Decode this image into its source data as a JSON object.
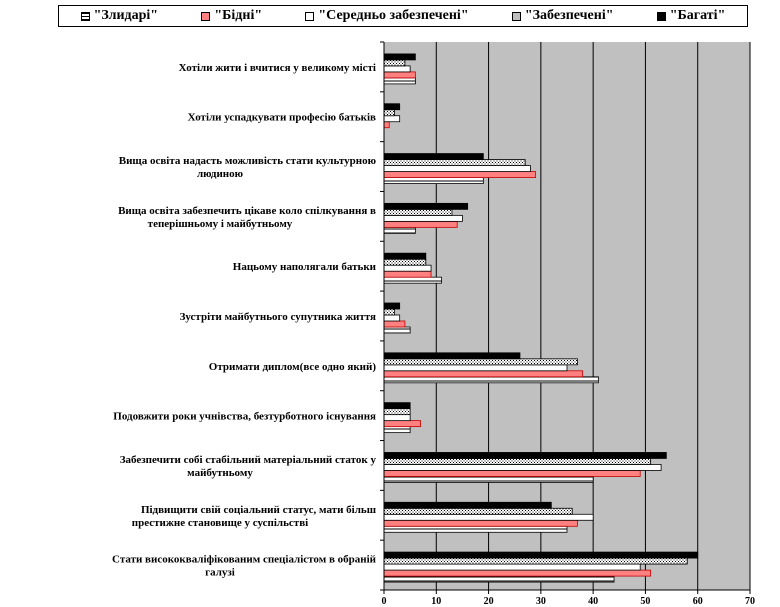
{
  "chart_data": {
    "type": "bar",
    "orientation": "horizontal",
    "xlim": [
      0,
      70
    ],
    "x_ticks": [
      "0",
      "10",
      "20",
      "30",
      "40",
      "50",
      "60",
      "70"
    ],
    "grid": true,
    "legend_position": "top",
    "series": [
      {
        "name": "\"Злидарі\"",
        "color": "#ffffff",
        "pattern": "hstripe",
        "values": [
          6,
          0,
          19,
          6,
          11,
          5,
          41,
          5,
          40,
          35,
          44
        ]
      },
      {
        "name": "\"Бідні\"",
        "color": "#ff8080",
        "pattern": "solid",
        "values": [
          6,
          1,
          29,
          14,
          9,
          4,
          38,
          7,
          49,
          37,
          51
        ]
      },
      {
        "name": "\"Середньо забезпечені\"",
        "color": "#ffffff",
        "pattern": "solid",
        "values": [
          5,
          3,
          28,
          15,
          9,
          3,
          35,
          5,
          53,
          40,
          49
        ]
      },
      {
        "name": "\"Забезпечені\"",
        "color": "#ffffff",
        "pattern": "dots",
        "values": [
          4,
          2,
          27,
          13,
          8,
          2,
          37,
          5,
          51,
          36,
          58
        ]
      },
      {
        "name": "\"Багаті\"",
        "color": "#000000",
        "pattern": "solid",
        "values": [
          6,
          3,
          19,
          16,
          8,
          3,
          26,
          5,
          54,
          32,
          60
        ]
      }
    ],
    "categories": [
      [
        "Хотіли жити і вчитися у великому місті"
      ],
      [
        "Хотіли успадкувати професію батьків"
      ],
      [
        "Вища освіта надасть можливість стати культурною",
        "людиною"
      ],
      [
        "Вища освіта забезпечить цікаве коло спілкування в",
        "теперішньому і майбутньому"
      ],
      [
        "Нацьому наполягали батьки"
      ],
      [
        "Зустріти майбутнього супутника життя"
      ],
      [
        "Отримати диплом(все одно який)"
      ],
      [
        "Подовжити роки учнівства, безтурботного існування"
      ],
      [
        "Забезпечити собі стабільний матеріальний статок у",
        "майбутньому"
      ],
      [
        "Підвищити свій соціальний статус, мати більш",
        "престижне становище у суспільстві"
      ],
      [
        "Стати висококваліфікованим спеціалістом в обраній",
        "галузі"
      ]
    ]
  }
}
